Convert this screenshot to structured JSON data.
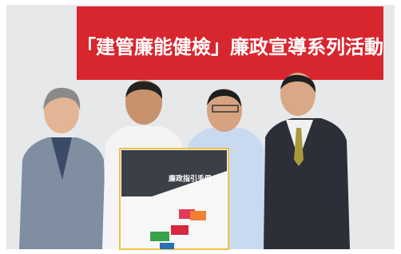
{
  "banner": {
    "text": "「建管廉能健檢」廉政宣導系列活動"
  },
  "booklet": {
    "title": "廉政指引手冊"
  }
}
